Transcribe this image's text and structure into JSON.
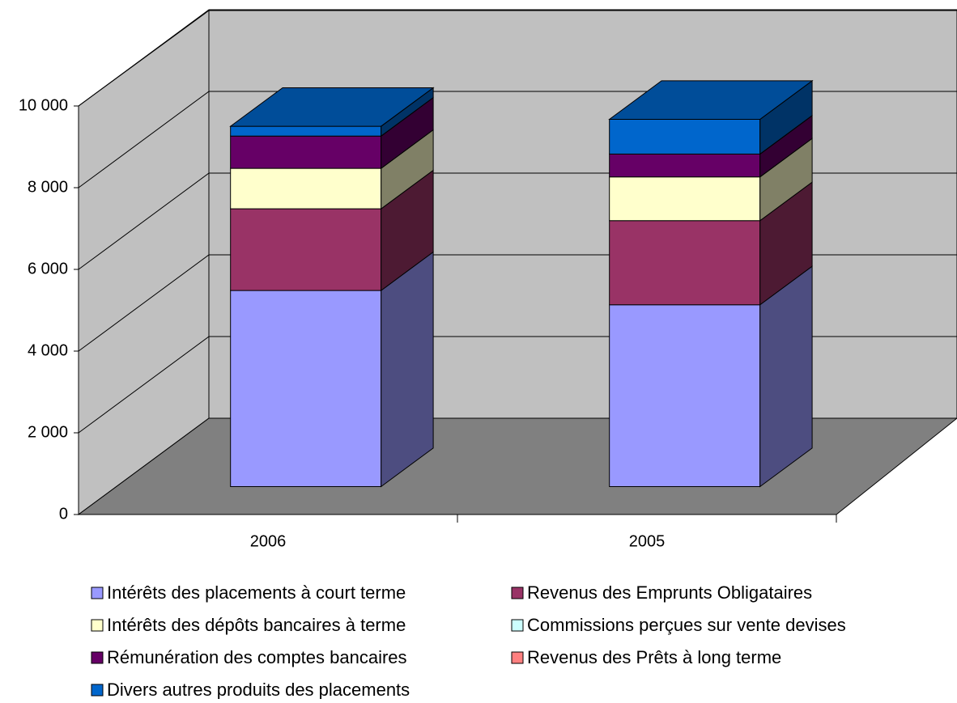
{
  "chart_data": {
    "type": "bar3d_stacked",
    "categories": [
      "2006",
      "2005"
    ],
    "series": [
      {
        "name": "Intérêts des placements à court terme",
        "color": "#9999ff",
        "values": [
          4800,
          4450
        ]
      },
      {
        "name": "Revenus des Emprunts Obligataires",
        "color": "#993366",
        "values": [
          2000,
          2060
        ]
      },
      {
        "name": "Intérêts des dépôts bancaires à terme",
        "color": "#ffffcc",
        "values": [
          990,
          1070
        ]
      },
      {
        "name": "Commissions perçues sur vente devises",
        "color": "#ccffff",
        "values": [
          0,
          0
        ]
      },
      {
        "name": "Rémunération des comptes bancaires",
        "color": "#660066",
        "values": [
          790,
          560
        ]
      },
      {
        "name": "Revenus des Prêts à long terme",
        "color": "#ff8080",
        "values": [
          0,
          0
        ]
      },
      {
        "name": "Divers autres produits des placements",
        "color": "#0066cc",
        "values": [
          240,
          850
        ]
      }
    ],
    "ylim": [
      0,
      10000
    ],
    "yticks": [
      0,
      {
        "value": 2000,
        "label": "2 000"
      },
      {
        "value": 4000,
        "label": "4 000"
      },
      {
        "value": 6000,
        "label": "6 000"
      },
      {
        "value": 8000,
        "label": "8 000"
      },
      {
        "value": 10000,
        "label": "10 000"
      }
    ],
    "grid": true
  }
}
